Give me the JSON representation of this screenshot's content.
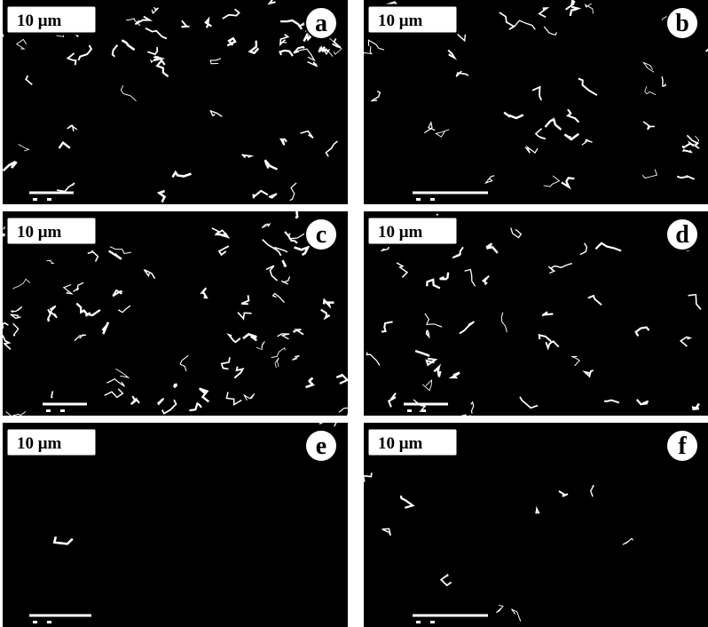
{
  "panels": [
    {
      "scale": "10 μm",
      "label": "a"
    },
    {
      "scale": "10 μm",
      "label": "b"
    },
    {
      "scale": "10 μm",
      "label": "c"
    },
    {
      "scale": "10 μm",
      "label": "d"
    },
    {
      "scale": "10 μm",
      "label": "e"
    },
    {
      "scale": "10 μm",
      "label": "f"
    }
  ]
}
